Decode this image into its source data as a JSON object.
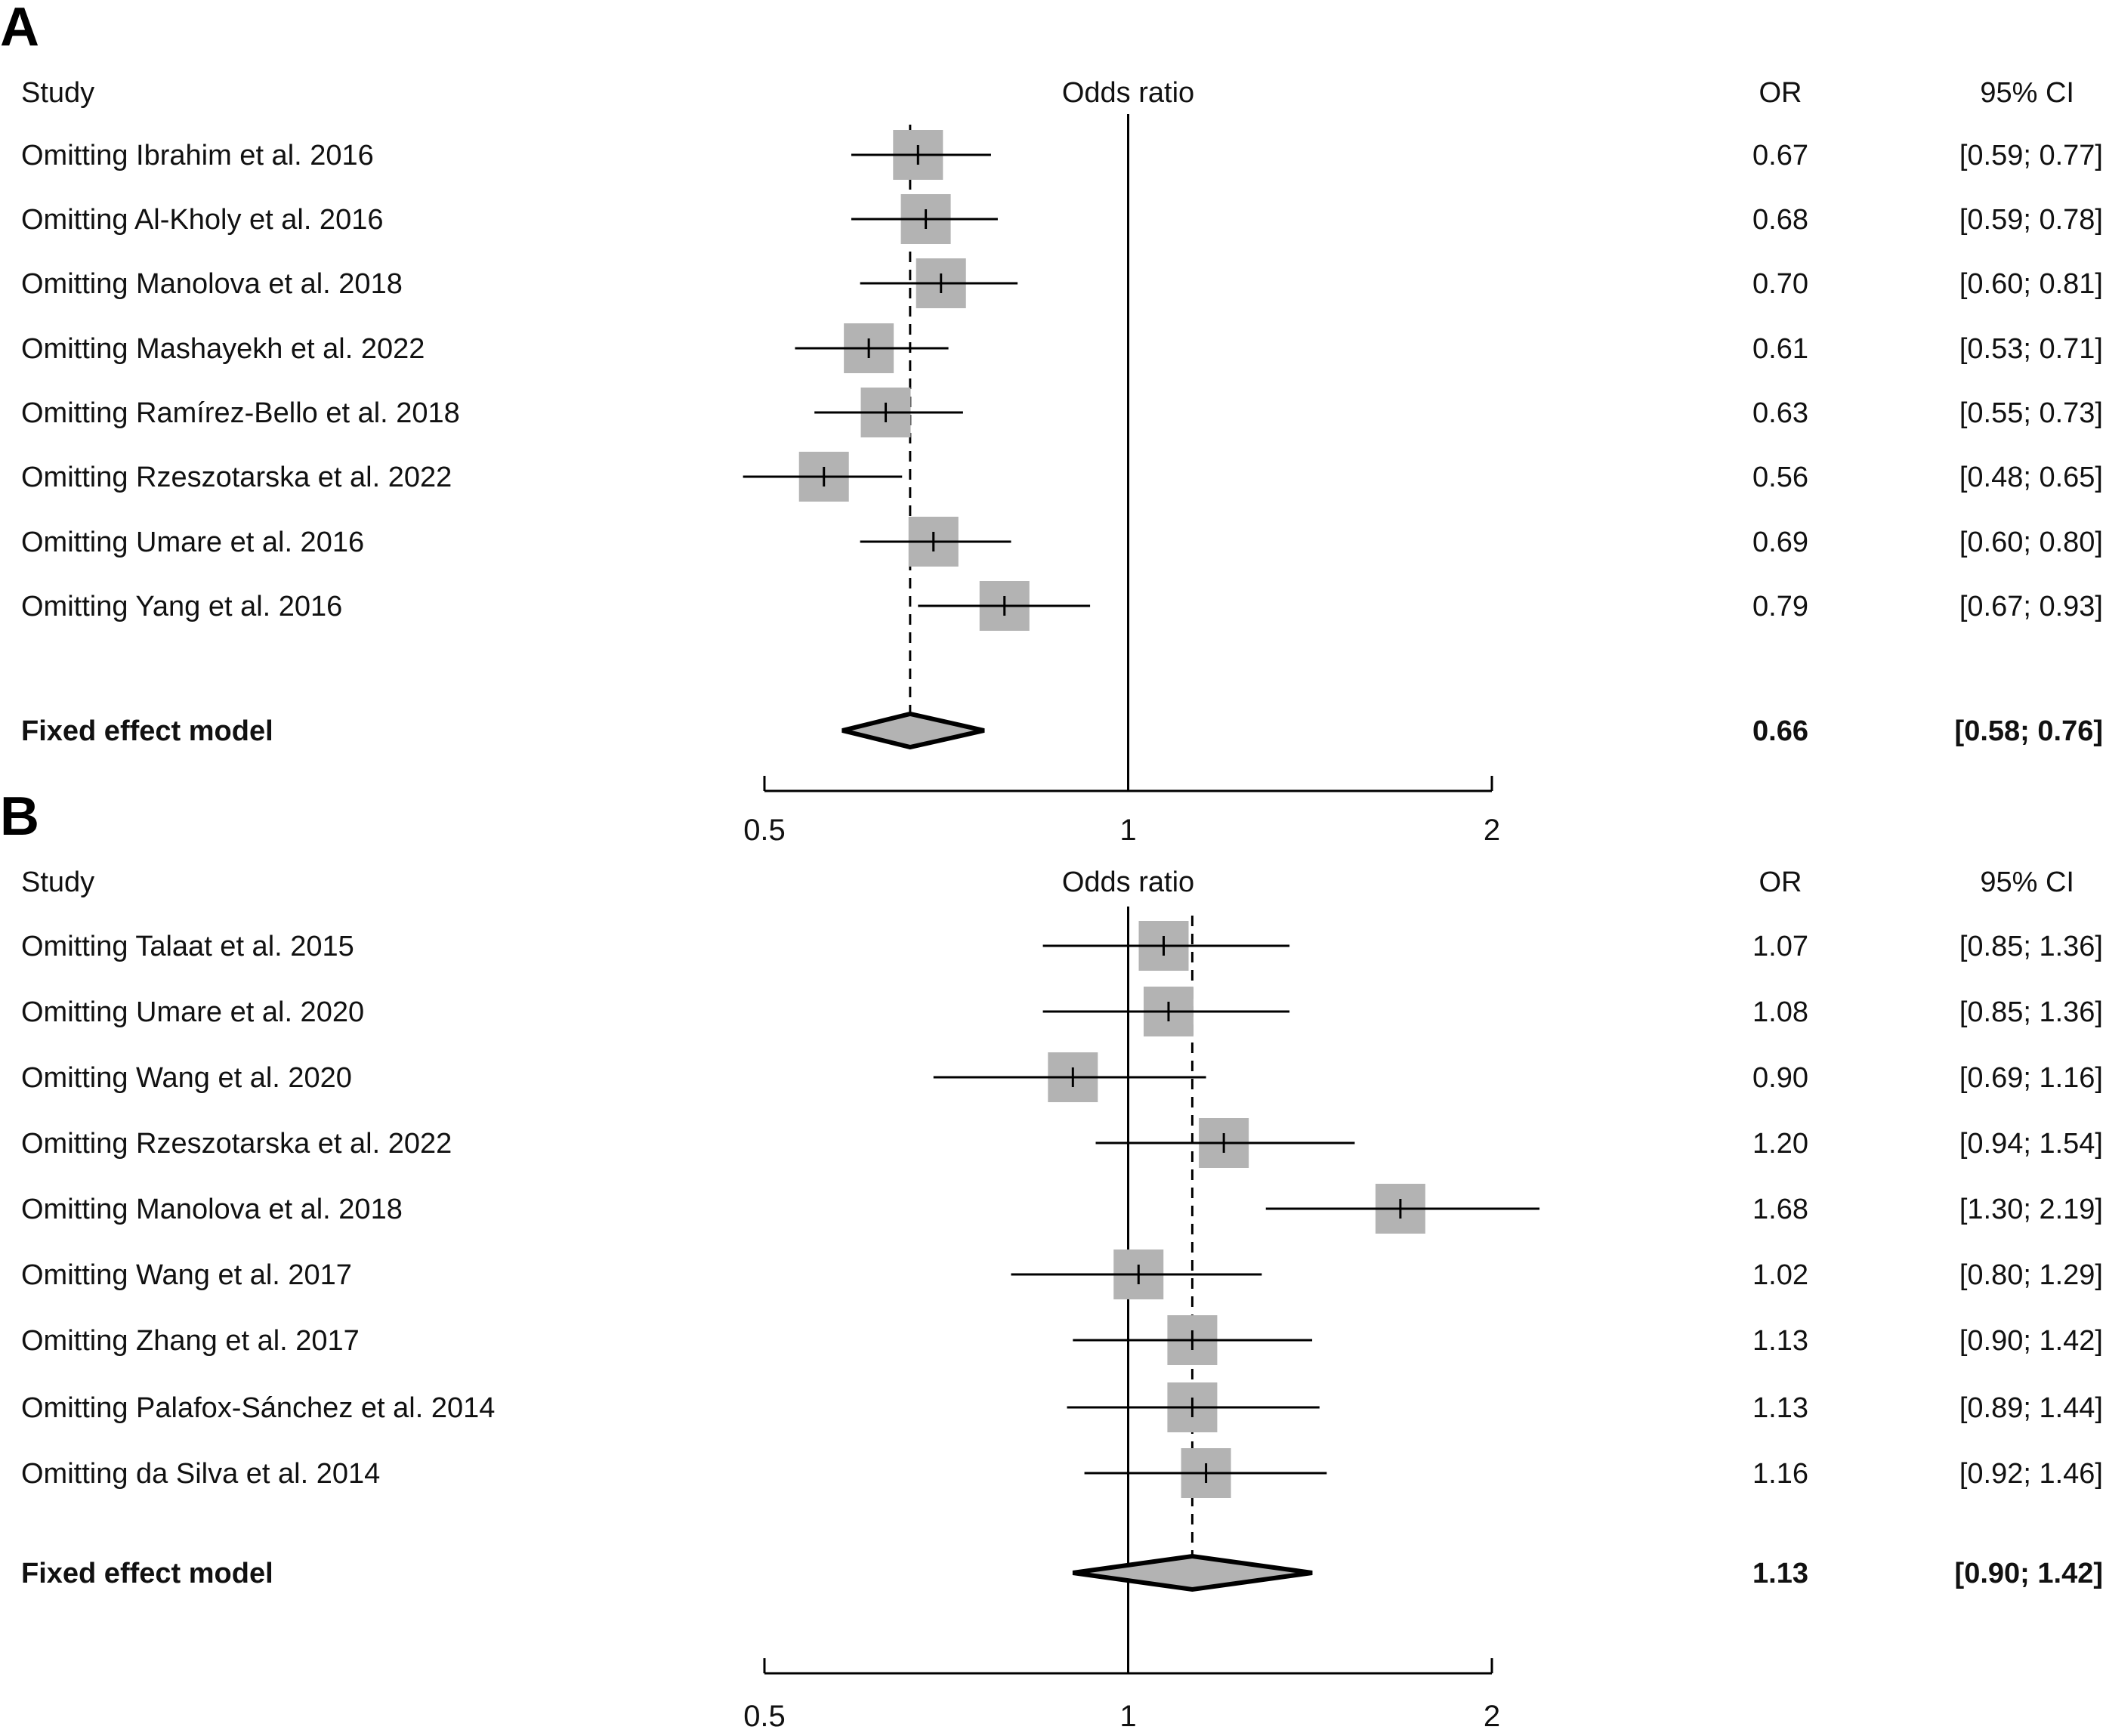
{
  "chart_data": [
    {
      "type": "forest",
      "panel": "A",
      "title": "",
      "headers": {
        "study": "Study",
        "plot": "Odds ratio",
        "or": "OR",
        "ci": "95% CI"
      },
      "xscale": "log",
      "xlim": [
        0.5,
        2
      ],
      "ticks": [
        "0.5",
        "1",
        "2"
      ],
      "tick_values": [
        0.5,
        1,
        2
      ],
      "reference_line": 1,
      "studies": [
        {
          "label": "Omitting Ibrahim et al. 2016",
          "or": 0.67,
          "lo": 0.59,
          "hi": 0.77,
          "or_text": "0.67",
          "ci_text": "[0.59; 0.77]"
        },
        {
          "label": "Omitting Al-Kholy et al. 2016",
          "or": 0.68,
          "lo": 0.59,
          "hi": 0.78,
          "or_text": "0.68",
          "ci_text": "[0.59; 0.78]"
        },
        {
          "label": "Omitting Manolova et al. 2018",
          "or": 0.7,
          "lo": 0.6,
          "hi": 0.81,
          "or_text": "0.70",
          "ci_text": "[0.60; 0.81]"
        },
        {
          "label": "Omitting Mashayekh et al. 2022",
          "or": 0.61,
          "lo": 0.53,
          "hi": 0.71,
          "or_text": "0.61",
          "ci_text": "[0.53; 0.71]"
        },
        {
          "label": "Omitting Ramírez-Bello et al. 2018",
          "or": 0.63,
          "lo": 0.55,
          "hi": 0.73,
          "or_text": "0.63",
          "ci_text": "[0.55; 0.73]"
        },
        {
          "label": "Omitting Rzeszotarska et al. 2022",
          "or": 0.56,
          "lo": 0.48,
          "hi": 0.65,
          "or_text": "0.56",
          "ci_text": "[0.48; 0.65]"
        },
        {
          "label": "Omitting Umare et al. 2016",
          "or": 0.69,
          "lo": 0.6,
          "hi": 0.8,
          "or_text": "0.69",
          "ci_text": "[0.60; 0.80]"
        },
        {
          "label": "Omitting Yang et al. 2016",
          "or": 0.79,
          "lo": 0.67,
          "hi": 0.93,
          "or_text": "0.79",
          "ci_text": "[0.67; 0.93]"
        }
      ],
      "pooled": {
        "label": "Fixed effect model",
        "or": 0.66,
        "lo": 0.58,
        "hi": 0.76,
        "or_text": "0.66",
        "ci_text": "[0.58; 0.76]"
      }
    },
    {
      "type": "forest",
      "panel": "B",
      "title": "",
      "headers": {
        "study": "Study",
        "plot": "Odds ratio",
        "or": "OR",
        "ci": "95% CI"
      },
      "xscale": "log",
      "xlim": [
        0.5,
        2
      ],
      "ticks": [
        "0.5",
        "1",
        "2"
      ],
      "tick_values": [
        0.5,
        1,
        2
      ],
      "reference_line": 1,
      "studies": [
        {
          "label": "Omitting Talaat et al. 2015",
          "or": 1.07,
          "lo": 0.85,
          "hi": 1.36,
          "or_text": "1.07",
          "ci_text": "[0.85; 1.36]"
        },
        {
          "label": "Omitting Umare et al. 2020",
          "or": 1.08,
          "lo": 0.85,
          "hi": 1.36,
          "or_text": "1.08",
          "ci_text": "[0.85; 1.36]"
        },
        {
          "label": "Omitting Wang et al. 2020",
          "or": 0.9,
          "lo": 0.69,
          "hi": 1.16,
          "or_text": "0.90",
          "ci_text": "[0.69; 1.16]"
        },
        {
          "label": "Omitting Rzeszotarska et al. 2022",
          "or": 1.2,
          "lo": 0.94,
          "hi": 1.54,
          "or_text": "1.20",
          "ci_text": "[0.94; 1.54]"
        },
        {
          "label": "Omitting Manolova et al. 2018",
          "or": 1.68,
          "lo": 1.3,
          "hi": 2.19,
          "or_text": "1.68",
          "ci_text": "[1.30; 2.19]"
        },
        {
          "label": "Omitting Wang et al. 2017",
          "or": 1.02,
          "lo": 0.8,
          "hi": 1.29,
          "or_text": "1.02",
          "ci_text": "[0.80; 1.29]"
        },
        {
          "label": "Omitting Zhang et al. 2017",
          "or": 1.13,
          "lo": 0.9,
          "hi": 1.42,
          "or_text": "1.13",
          "ci_text": "[0.90; 1.42]"
        },
        {
          "label": "Omitting Palafox-Sánchez et al. 2014",
          "or": 1.13,
          "lo": 0.89,
          "hi": 1.44,
          "or_text": "1.13",
          "ci_text": "[0.89; 1.44]"
        },
        {
          "label": "Omitting da Silva et al. 2014",
          "or": 1.16,
          "lo": 0.92,
          "hi": 1.46,
          "or_text": "1.16",
          "ci_text": "[0.92; 1.46]"
        }
      ],
      "pooled": {
        "label": "Fixed effect model",
        "or": 1.13,
        "lo": 0.9,
        "hi": 1.42,
        "or_text": "1.13",
        "ci_text": "[0.90; 1.42]"
      }
    }
  ],
  "colors": {
    "box": "#b3b3b3",
    "line": "#000000",
    "diamond_fill": "#b3b3b3"
  }
}
